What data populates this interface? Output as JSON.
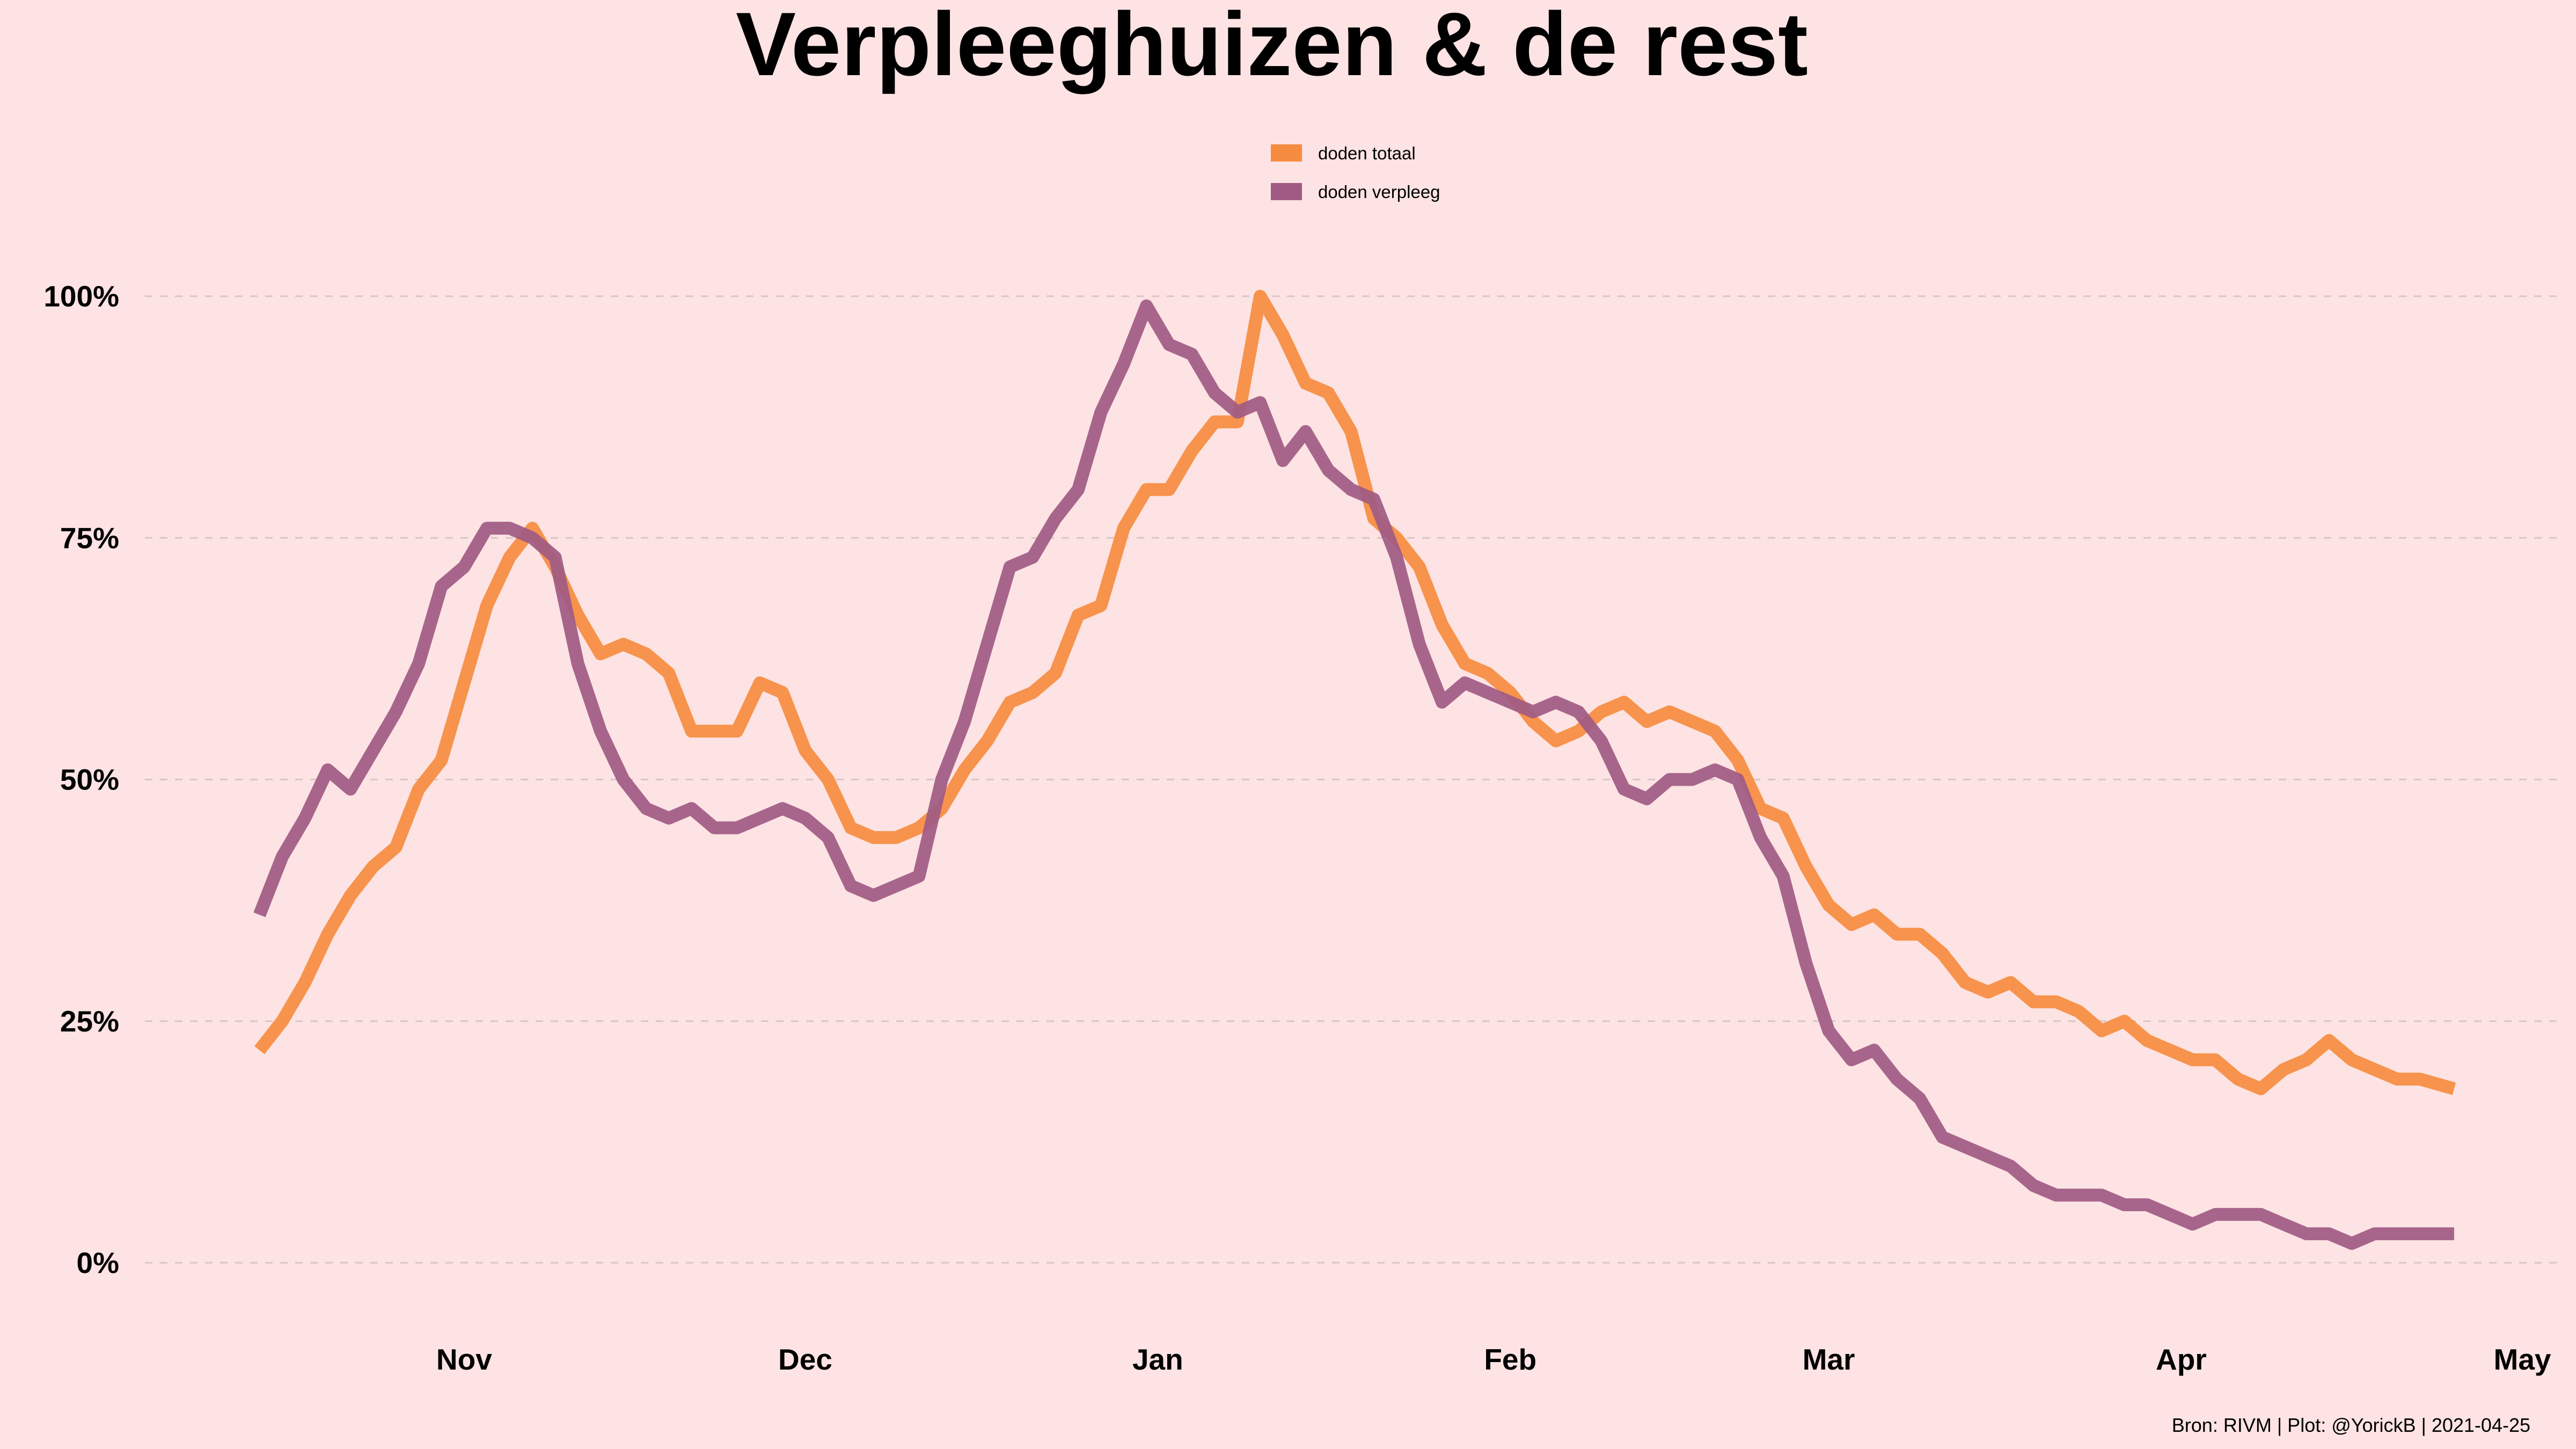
{
  "chart_data": {
    "type": "line",
    "title": "Verpleeghuizen & de rest",
    "xlabel": "",
    "ylabel": "",
    "caption": "Bron: RIVM | Plot: @YorickB  |  2021-04-25",
    "x_range": [
      "2020-10-01",
      "2021-05-01"
    ],
    "ylim": [
      -0.05,
      1.12
    ],
    "y_ticks": [
      {
        "value": 0,
        "label": "0%"
      },
      {
        "value": 0.25,
        "label": "25%"
      },
      {
        "value": 0.5,
        "label": "50%"
      },
      {
        "value": 0.75,
        "label": "75%"
      },
      {
        "value": 1,
        "label": "100%"
      }
    ],
    "x_ticks": [
      {
        "date": "2020-11-01",
        "label": "Nov"
      },
      {
        "date": "2020-12-01",
        "label": "Dec"
      },
      {
        "date": "2021-01-01",
        "label": "Jan"
      },
      {
        "date": "2021-02-01",
        "label": "Feb"
      },
      {
        "date": "2021-03-01",
        "label": "Mar"
      },
      {
        "date": "2021-04-01",
        "label": "Apr"
      },
      {
        "date": "2021-05-01",
        "label": "May"
      }
    ],
    "grid": "horizontal dashed",
    "legend_position": "top-center",
    "series": [
      {
        "name": "doden totaal",
        "color": "#f68c3f",
        "points": [
          [
            "2020-10-14",
            0.22
          ],
          [
            "2020-10-16",
            0.25
          ],
          [
            "2020-10-18",
            0.29
          ],
          [
            "2020-10-20",
            0.34
          ],
          [
            "2020-10-22",
            0.38
          ],
          [
            "2020-10-24",
            0.41
          ],
          [
            "2020-10-26",
            0.43
          ],
          [
            "2020-10-28",
            0.49
          ],
          [
            "2020-10-30",
            0.52
          ],
          [
            "2020-11-01",
            0.6
          ],
          [
            "2020-11-03",
            0.68
          ],
          [
            "2020-11-05",
            0.73
          ],
          [
            "2020-11-07",
            0.76
          ],
          [
            "2020-11-09",
            0.72
          ],
          [
            "2020-11-11",
            0.67
          ],
          [
            "2020-11-13",
            0.63
          ],
          [
            "2020-11-15",
            0.64
          ],
          [
            "2020-11-17",
            0.63
          ],
          [
            "2020-11-19",
            0.61
          ],
          [
            "2020-11-21",
            0.55
          ],
          [
            "2020-11-23",
            0.55
          ],
          [
            "2020-11-25",
            0.55
          ],
          [
            "2020-11-27",
            0.6
          ],
          [
            "2020-11-29",
            0.59
          ],
          [
            "2020-12-01",
            0.53
          ],
          [
            "2020-12-03",
            0.5
          ],
          [
            "2020-12-05",
            0.45
          ],
          [
            "2020-12-07",
            0.44
          ],
          [
            "2020-12-09",
            0.44
          ],
          [
            "2020-12-11",
            0.45
          ],
          [
            "2020-12-13",
            0.47
          ],
          [
            "2020-12-15",
            0.51
          ],
          [
            "2020-12-17",
            0.54
          ],
          [
            "2020-12-19",
            0.58
          ],
          [
            "2020-12-21",
            0.59
          ],
          [
            "2020-12-23",
            0.61
          ],
          [
            "2020-12-25",
            0.67
          ],
          [
            "2020-12-27",
            0.68
          ],
          [
            "2020-12-29",
            0.76
          ],
          [
            "2020-12-31",
            0.8
          ],
          [
            "2021-01-02",
            0.8
          ],
          [
            "2021-01-04",
            0.84
          ],
          [
            "2021-01-06",
            0.87
          ],
          [
            "2021-01-08",
            0.87
          ],
          [
            "2021-01-10",
            1.0
          ],
          [
            "2021-01-12",
            0.96
          ],
          [
            "2021-01-14",
            0.91
          ],
          [
            "2021-01-16",
            0.9
          ],
          [
            "2021-01-18",
            0.86
          ],
          [
            "2021-01-20",
            0.77
          ],
          [
            "2021-01-22",
            0.75
          ],
          [
            "2021-01-24",
            0.72
          ],
          [
            "2021-01-26",
            0.66
          ],
          [
            "2021-01-28",
            0.62
          ],
          [
            "2021-01-30",
            0.61
          ],
          [
            "2021-02-01",
            0.59
          ],
          [
            "2021-02-03",
            0.56
          ],
          [
            "2021-02-05",
            0.54
          ],
          [
            "2021-02-07",
            0.55
          ],
          [
            "2021-02-09",
            0.57
          ],
          [
            "2021-02-11",
            0.58
          ],
          [
            "2021-02-13",
            0.56
          ],
          [
            "2021-02-15",
            0.57
          ],
          [
            "2021-02-17",
            0.56
          ],
          [
            "2021-02-19",
            0.55
          ],
          [
            "2021-02-21",
            0.52
          ],
          [
            "2021-02-23",
            0.47
          ],
          [
            "2021-02-25",
            0.46
          ],
          [
            "2021-02-27",
            0.41
          ],
          [
            "2021-03-01",
            0.37
          ],
          [
            "2021-03-03",
            0.35
          ],
          [
            "2021-03-05",
            0.36
          ],
          [
            "2021-03-07",
            0.34
          ],
          [
            "2021-03-09",
            0.34
          ],
          [
            "2021-03-11",
            0.32
          ],
          [
            "2021-03-13",
            0.29
          ],
          [
            "2021-03-15",
            0.28
          ],
          [
            "2021-03-17",
            0.29
          ],
          [
            "2021-03-19",
            0.27
          ],
          [
            "2021-03-21",
            0.27
          ],
          [
            "2021-03-23",
            0.26
          ],
          [
            "2021-03-25",
            0.24
          ],
          [
            "2021-03-27",
            0.25
          ],
          [
            "2021-03-29",
            0.23
          ],
          [
            "2021-03-31",
            0.22
          ],
          [
            "2021-04-02",
            0.21
          ],
          [
            "2021-04-04",
            0.21
          ],
          [
            "2021-04-06",
            0.19
          ],
          [
            "2021-04-08",
            0.18
          ],
          [
            "2021-04-10",
            0.2
          ],
          [
            "2021-04-12",
            0.21
          ],
          [
            "2021-04-14",
            0.23
          ],
          [
            "2021-04-16",
            0.21
          ],
          [
            "2021-04-18",
            0.2
          ],
          [
            "2021-04-20",
            0.19
          ],
          [
            "2021-04-22",
            0.19
          ],
          [
            "2021-04-25",
            0.18
          ]
        ]
      },
      {
        "name": "doden verpleeg",
        "color": "#a05a84",
        "points": [
          [
            "2020-10-14",
            0.36
          ],
          [
            "2020-10-16",
            0.42
          ],
          [
            "2020-10-18",
            0.46
          ],
          [
            "2020-10-20",
            0.51
          ],
          [
            "2020-10-22",
            0.49
          ],
          [
            "2020-10-24",
            0.53
          ],
          [
            "2020-10-26",
            0.57
          ],
          [
            "2020-10-28",
            0.62
          ],
          [
            "2020-10-30",
            0.7
          ],
          [
            "2020-11-01",
            0.72
          ],
          [
            "2020-11-03",
            0.76
          ],
          [
            "2020-11-05",
            0.76
          ],
          [
            "2020-11-07",
            0.75
          ],
          [
            "2020-11-09",
            0.73
          ],
          [
            "2020-11-11",
            0.62
          ],
          [
            "2020-11-13",
            0.55
          ],
          [
            "2020-11-15",
            0.5
          ],
          [
            "2020-11-17",
            0.47
          ],
          [
            "2020-11-19",
            0.46
          ],
          [
            "2020-11-21",
            0.47
          ],
          [
            "2020-11-23",
            0.45
          ],
          [
            "2020-11-25",
            0.45
          ],
          [
            "2020-11-27",
            0.46
          ],
          [
            "2020-11-29",
            0.47
          ],
          [
            "2020-12-01",
            0.46
          ],
          [
            "2020-12-03",
            0.44
          ],
          [
            "2020-12-05",
            0.39
          ],
          [
            "2020-12-07",
            0.38
          ],
          [
            "2020-12-09",
            0.39
          ],
          [
            "2020-12-11",
            0.4
          ],
          [
            "2020-12-13",
            0.5
          ],
          [
            "2020-12-15",
            0.56
          ],
          [
            "2020-12-17",
            0.64
          ],
          [
            "2020-12-19",
            0.72
          ],
          [
            "2020-12-21",
            0.73
          ],
          [
            "2020-12-23",
            0.77
          ],
          [
            "2020-12-25",
            0.8
          ],
          [
            "2020-12-27",
            0.88
          ],
          [
            "2020-12-29",
            0.93
          ],
          [
            "2020-12-31",
            0.99
          ],
          [
            "2021-01-02",
            0.95
          ],
          [
            "2021-01-04",
            0.94
          ],
          [
            "2021-01-06",
            0.9
          ],
          [
            "2021-01-08",
            0.88
          ],
          [
            "2021-01-10",
            0.89
          ],
          [
            "2021-01-12",
            0.83
          ],
          [
            "2021-01-14",
            0.86
          ],
          [
            "2021-01-16",
            0.82
          ],
          [
            "2021-01-18",
            0.8
          ],
          [
            "2021-01-20",
            0.79
          ],
          [
            "2021-01-22",
            0.73
          ],
          [
            "2021-01-24",
            0.64
          ],
          [
            "2021-01-26",
            0.58
          ],
          [
            "2021-01-28",
            0.6
          ],
          [
            "2021-01-30",
            0.59
          ],
          [
            "2021-02-01",
            0.58
          ],
          [
            "2021-02-03",
            0.57
          ],
          [
            "2021-02-05",
            0.58
          ],
          [
            "2021-02-07",
            0.57
          ],
          [
            "2021-02-09",
            0.54
          ],
          [
            "2021-02-11",
            0.49
          ],
          [
            "2021-02-13",
            0.48
          ],
          [
            "2021-02-15",
            0.5
          ],
          [
            "2021-02-17",
            0.5
          ],
          [
            "2021-02-19",
            0.51
          ],
          [
            "2021-02-21",
            0.5
          ],
          [
            "2021-02-23",
            0.44
          ],
          [
            "2021-02-25",
            0.4
          ],
          [
            "2021-02-27",
            0.31
          ],
          [
            "2021-03-01",
            0.24
          ],
          [
            "2021-03-03",
            0.21
          ],
          [
            "2021-03-05",
            0.22
          ],
          [
            "2021-03-07",
            0.19
          ],
          [
            "2021-03-09",
            0.17
          ],
          [
            "2021-03-11",
            0.13
          ],
          [
            "2021-03-13",
            0.12
          ],
          [
            "2021-03-15",
            0.11
          ],
          [
            "2021-03-17",
            0.1
          ],
          [
            "2021-03-19",
            0.08
          ],
          [
            "2021-03-21",
            0.07
          ],
          [
            "2021-03-23",
            0.07
          ],
          [
            "2021-03-25",
            0.07
          ],
          [
            "2021-03-27",
            0.06
          ],
          [
            "2021-03-29",
            0.06
          ],
          [
            "2021-03-31",
            0.05
          ],
          [
            "2021-04-02",
            0.04
          ],
          [
            "2021-04-04",
            0.05
          ],
          [
            "2021-04-06",
            0.05
          ],
          [
            "2021-04-08",
            0.05
          ],
          [
            "2021-04-10",
            0.04
          ],
          [
            "2021-04-12",
            0.03
          ],
          [
            "2021-04-14",
            0.03
          ],
          [
            "2021-04-16",
            0.02
          ],
          [
            "2021-04-18",
            0.03
          ],
          [
            "2021-04-20",
            0.03
          ],
          [
            "2021-04-22",
            0.03
          ],
          [
            "2021-04-25",
            0.03
          ]
        ]
      }
    ]
  }
}
